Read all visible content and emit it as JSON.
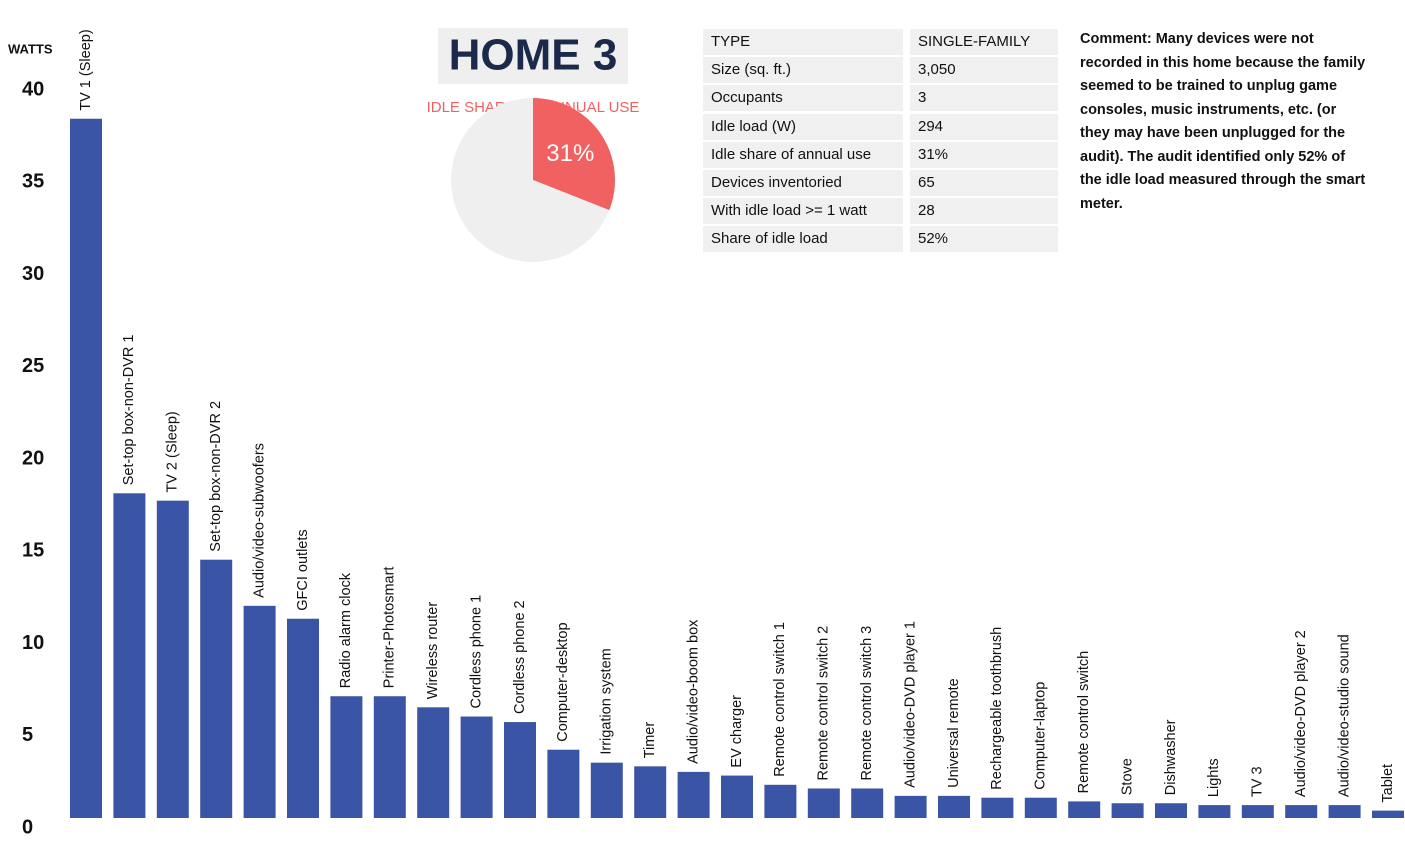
{
  "chart_data": [
    {
      "type": "bar",
      "ylabel": "WATTS",
      "categories": [
        "TV 1 (Sleep)",
        "Set-top box-non-DVR 1",
        "TV 2 (Sleep)",
        "Set-top box-non-DVR 2",
        "Audio/video-subwoofers",
        "GFCI outlets",
        "Radio alarm clock",
        "Printer-Photosmart",
        "Wireless router",
        "Cordless phone 1",
        "Cordless phone 2",
        "Computer-desktop",
        "Irrigation system",
        "Timer",
        "Audio/video-boom box",
        "EV charger",
        "Remote control switch 1",
        "Remote control switch 2",
        "Remote control switch 3",
        "Audio/video-DVD player 1",
        "Universal remote",
        "Rechargeable toothbrush",
        "Computer-laptop",
        "Remote control switch",
        "Stove",
        "Dishwasher",
        "Lights",
        "TV 3",
        "Audio/video-DVD player 2",
        "Audio/video-studio sound",
        "Tablet"
      ],
      "values": [
        37.9,
        17.6,
        17.2,
        14.0,
        11.5,
        10.8,
        6.6,
        6.6,
        6.0,
        5.5,
        5.2,
        3.7,
        3.0,
        2.8,
        2.5,
        2.3,
        1.8,
        1.6,
        1.6,
        1.2,
        1.2,
        1.1,
        1.1,
        0.9,
        0.8,
        0.8,
        0.7,
        0.7,
        0.7,
        0.7,
        0.4
      ],
      "color": "#3b55a6",
      "ylim": [
        0,
        40
      ],
      "yticks": [
        0,
        5,
        10,
        15,
        20,
        25,
        30,
        35,
        40
      ]
    },
    {
      "type": "pie",
      "title": "HOME 3",
      "subtitle": "IDLE SHARE OF ANNUAL USE",
      "values": [
        31,
        69
      ],
      "value_labels": [
        "31%",
        null
      ],
      "colors": [
        "#f26161",
        "#efefef"
      ]
    }
  ],
  "table": {
    "rows": [
      [
        "TYPE",
        "SINGLE-FAMILY"
      ],
      [
        "Size (sq. ft.)",
        "3,050"
      ],
      [
        "Occupants",
        "3"
      ],
      [
        "Idle load (W)",
        "294"
      ],
      [
        "Idle share of annual use",
        "31%"
      ],
      [
        "Devices inventoried",
        "65"
      ],
      [
        "With idle load >= 1 watt",
        "28"
      ],
      [
        "Share of idle load",
        "52%"
      ]
    ]
  },
  "comment": "Comment: Many devices were not recorded in this home because the family seemed to be trained to unplug game consoles, music instruments, etc. (or they may have been unplugged for the audit). The audit identified only 52% of the idle load measured through the smart meter."
}
